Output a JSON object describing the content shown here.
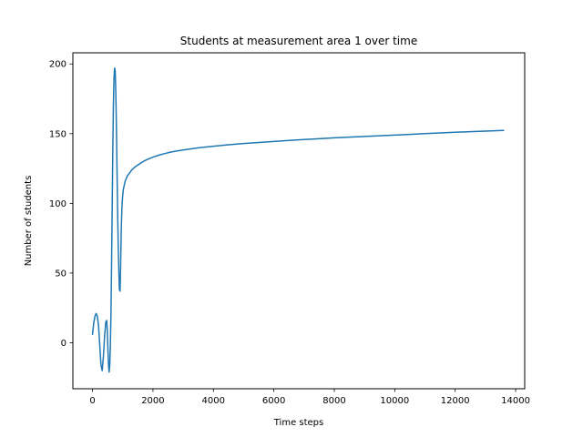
{
  "chart_data": {
    "type": "line",
    "title": "Students at measurement area 1 over time",
    "xlabel": "Time steps",
    "ylabel": "Number of students",
    "xlim": [
      -650,
      14300
    ],
    "ylim": [
      -33,
      208
    ],
    "xticks": [
      0,
      2000,
      4000,
      6000,
      8000,
      10000,
      12000,
      14000
    ],
    "yticks": [
      0,
      50,
      100,
      150,
      200
    ],
    "grid": false,
    "legend": "none",
    "series_color": "#1f77b4",
    "series": [
      {
        "x": [
          0,
          40,
          80,
          120,
          160,
          200,
          240,
          280,
          320,
          360,
          400,
          440,
          470,
          490,
          510,
          530,
          550,
          570,
          590,
          610,
          630,
          650,
          670,
          690,
          710,
          730,
          750,
          770,
          790,
          810,
          830,
          850,
          870,
          890,
          910,
          930,
          950,
          965,
          980,
          1000,
          1020,
          1050,
          1080,
          1120,
          1160,
          1200,
          1250,
          1300,
          1400,
          1500,
          1600,
          1700,
          1800,
          2000,
          2200,
          2400,
          2600,
          2800,
          3000,
          3500,
          4000,
          4500,
          5000,
          5500,
          6000,
          6500,
          7000,
          7500,
          8000,
          8500,
          9000,
          9500,
          10000,
          10500,
          11000,
          11500,
          12000,
          12500,
          13000,
          13600
        ],
        "y": [
          6,
          14,
          19,
          21,
          19,
          12,
          -2,
          -16,
          -20,
          -10,
          5,
          15,
          16,
          8,
          -5,
          -16,
          -21,
          -16,
          -2,
          20,
          55,
          95,
          135,
          170,
          190,
          197,
          195,
          180,
          155,
          125,
          95,
          70,
          52,
          38,
          37,
          55,
          80,
          92,
          100,
          106,
          110,
          113,
          116,
          118,
          120,
          121,
          122.5,
          124,
          126,
          127.5,
          129,
          130.3,
          131.4,
          133.2,
          134.6,
          135.8,
          136.8,
          137.6,
          138.3,
          139.8,
          141,
          142,
          142.9,
          143.7,
          144.4,
          145.1,
          145.8,
          146.4,
          147,
          147.5,
          148,
          148.5,
          149,
          149.5,
          150,
          150.5,
          151,
          151.4,
          151.8,
          152.3
        ]
      }
    ]
  }
}
